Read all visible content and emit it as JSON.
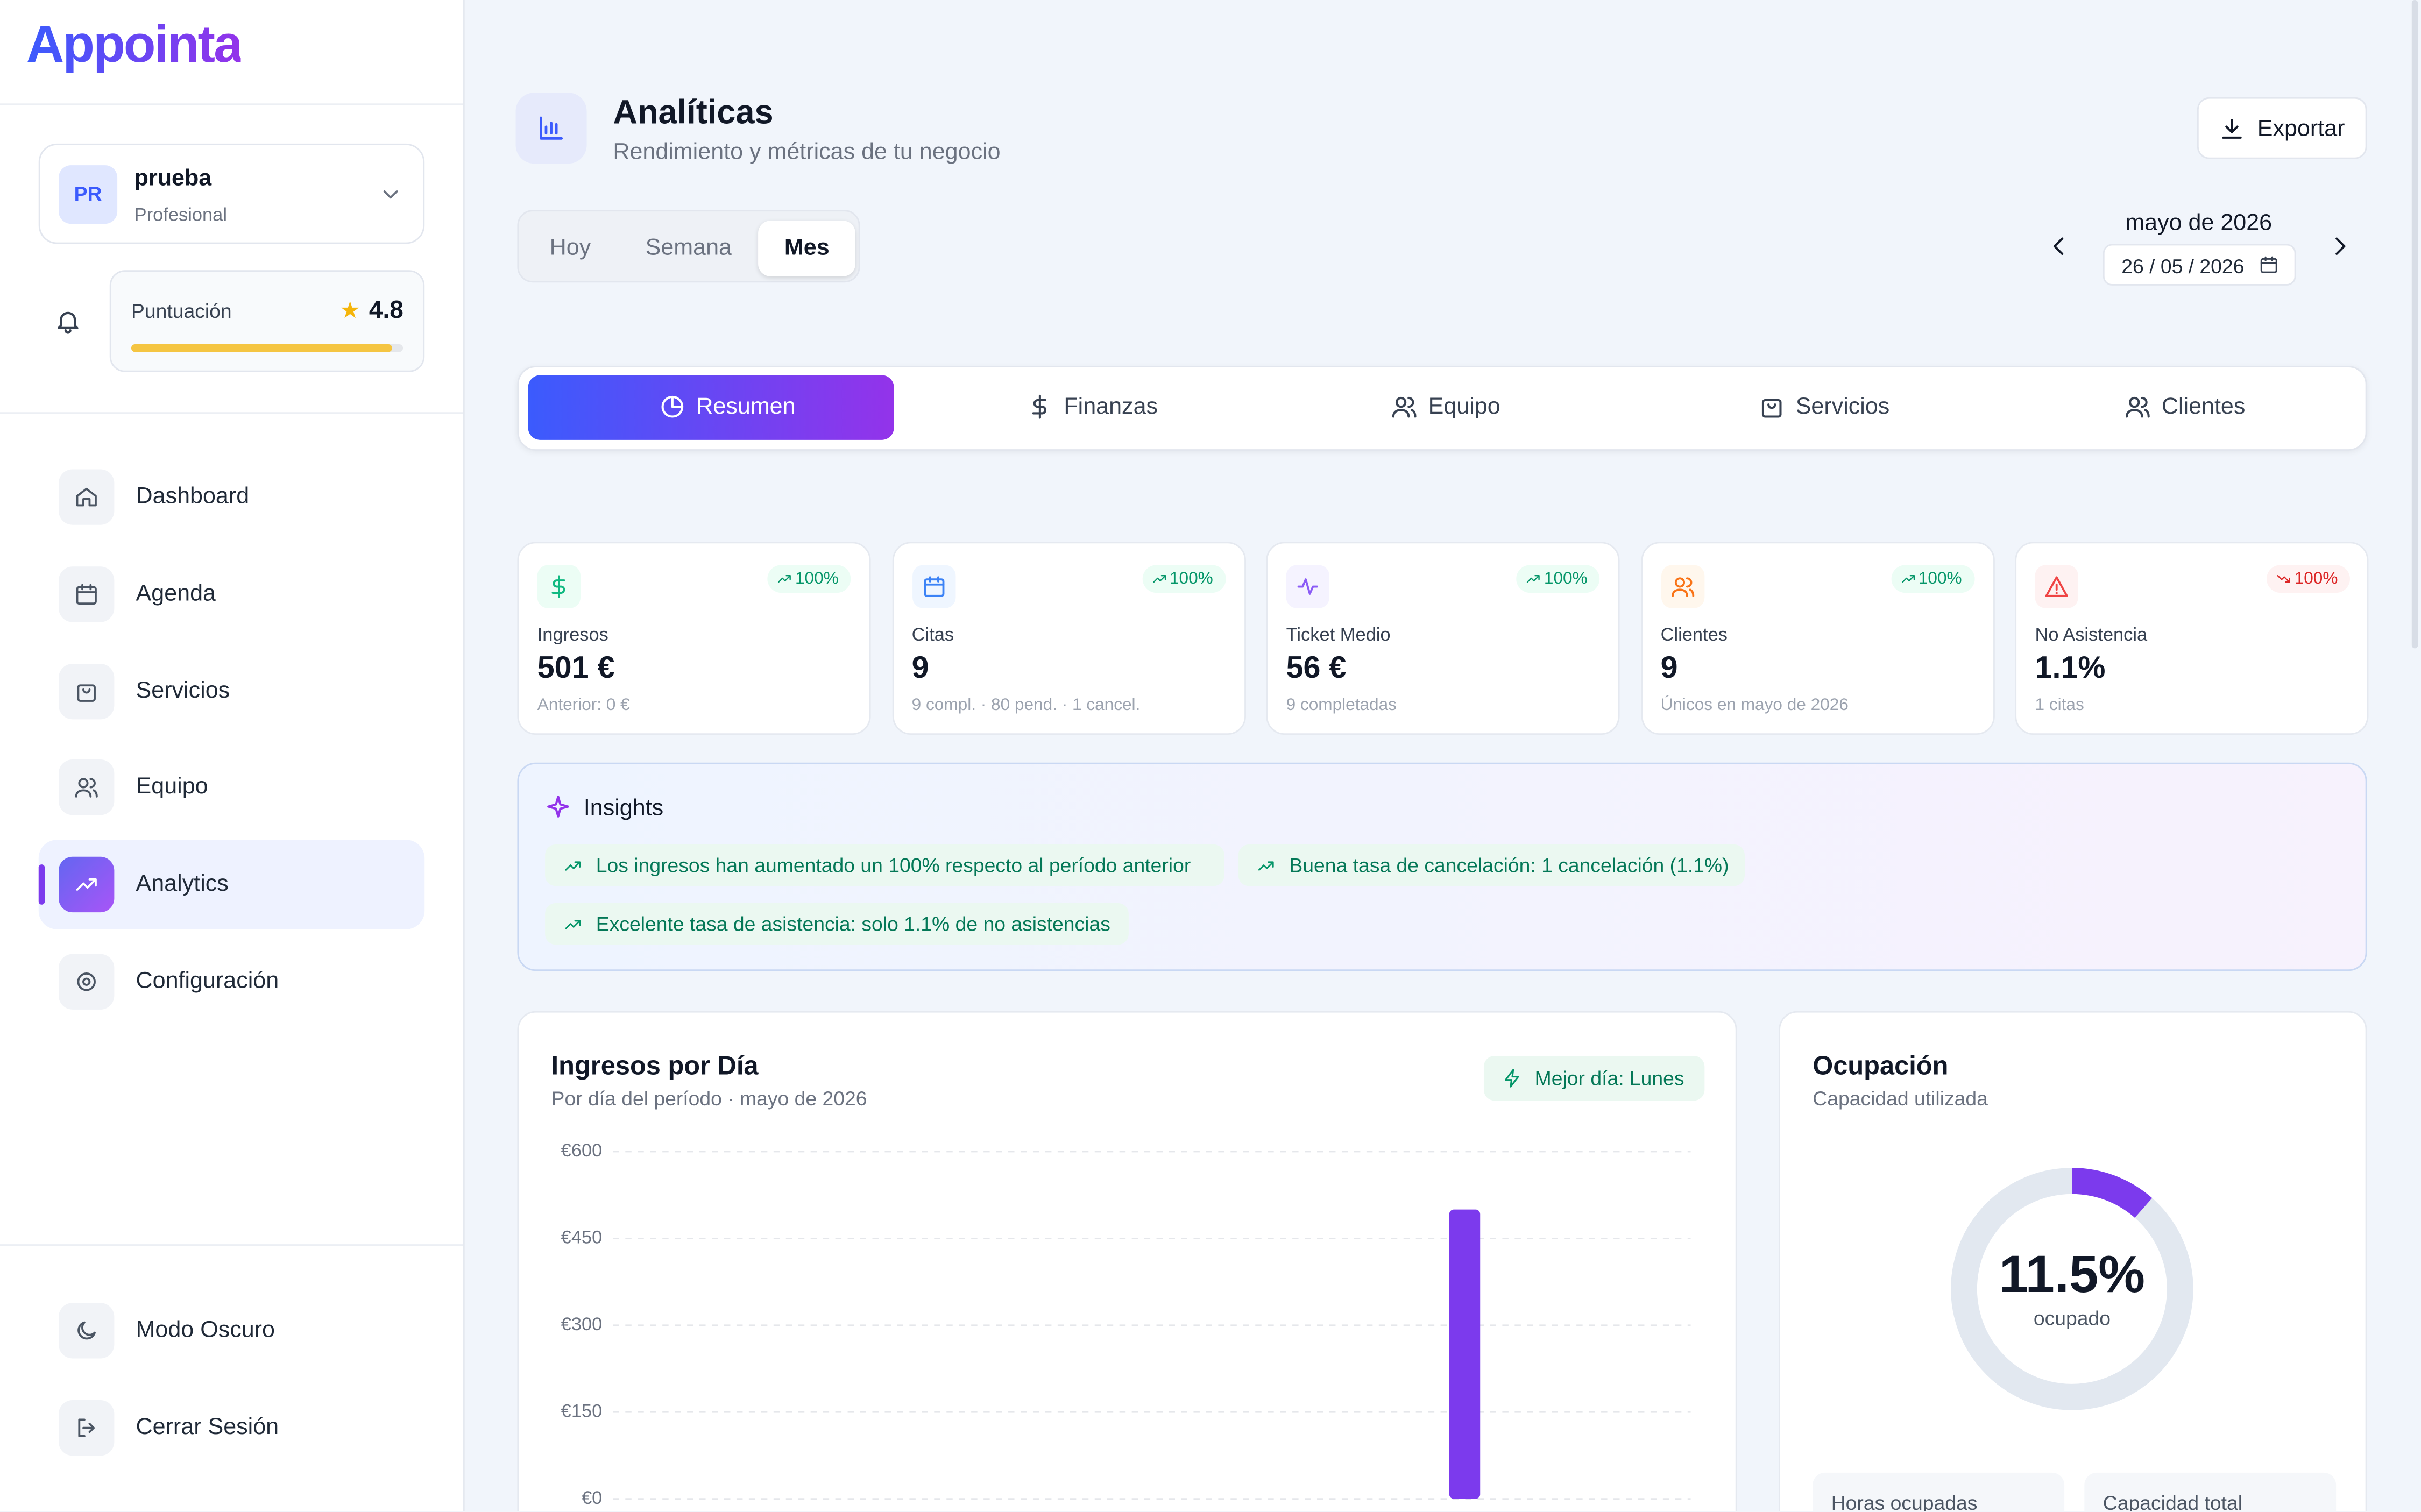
{
  "brand": "Appointa",
  "user": {
    "initials": "PR",
    "name": "prueba",
    "role": "Profesional"
  },
  "rating": {
    "label": "Puntuación",
    "value": 4.8
  },
  "nav": [
    "Dashboard",
    "Agenda",
    "Servicios",
    "Equipo",
    "Analytics",
    "Configuración"
  ],
  "footer_nav": [
    "Modo Oscuro",
    "Cerrar Sesión"
  ],
  "header": {
    "title": "Analíticas",
    "subtitle": "Rendimiento y métricas de tu negocio",
    "export": "Exportar"
  },
  "periods": [
    "Hoy",
    "Semana",
    "Mes"
  ],
  "date": {
    "month": "mayo de 2026",
    "value": "26 / 05 / 2026"
  },
  "tabs": [
    "Resumen",
    "Finanzas",
    "Equipo",
    "Servicios",
    "Clientes"
  ],
  "kpis": [
    {
      "label": "Ingresos",
      "value": "501 €",
      "change": "100%",
      "note": "Anterior: 0 €"
    },
    {
      "label": "Citas",
      "value": "9",
      "change": "100%",
      "note": "9 compl. · 80 pend. · 1 cancel."
    },
    {
      "label": "Ticket Medio",
      "value": "56 €",
      "change": "100%",
      "note": "9 completadas"
    },
    {
      "label": "Clientes",
      "value": "9",
      "change": "100%",
      "note": "Únicos en mayo de 2026"
    },
    {
      "label": "No Asistencia",
      "value": "1.1%",
      "change": "100%",
      "note": "1 citas"
    }
  ],
  "insights": {
    "title": "Insights",
    "items": [
      "Los ingresos han aumentado un 100% respecto al período anterior",
      "Buena tasa de cancelación: 1 cancelación (1.1%)",
      "Excelente tasa de asistencia: solo 1.1% de no asistencias"
    ]
  },
  "chart_data": [
    {
      "type": "bar",
      "title": "Ingresos por Día",
      "subtitle": "Por día del período · mayo de 2026",
      "badge": "Mejor día: Lunes",
      "categories": [
        null,
        null,
        null,
        null,
        null,
        null,
        null,
        null,
        null,
        null,
        null,
        null,
        null,
        null,
        null,
        null,
        null,
        null,
        null,
        null,
        null,
        null,
        null,
        null,
        null,
        null,
        null,
        null,
        null,
        null,
        null
      ],
      "values": [
        0,
        0,
        0,
        0,
        0,
        0,
        0,
        0,
        0,
        0,
        0,
        0,
        0,
        0,
        0,
        0,
        0,
        0,
        0,
        0,
        0,
        0,
        0,
        0,
        500,
        0,
        0,
        0,
        0,
        0,
        0
      ],
      "color": "#7c3aed",
      "ylim": [
        0,
        600
      ],
      "yticks": [
        {
          "value": 0,
          "label": "€0"
        },
        {
          "value": 150,
          "label": "€150"
        },
        {
          "value": 300,
          "label": "€300"
        },
        {
          "value": 450,
          "label": "€450"
        },
        {
          "value": 600,
          "label": "€600"
        }
      ],
      "grid": true
    },
    {
      "type": "pie",
      "title": "Ocupación",
      "subtitle": "Capacidad utilizada",
      "center_text": "ocupado",
      "values": [
        11.5,
        88.5
      ],
      "value_labels": [
        "11.5%",
        null
      ],
      "colors": [
        "#7c3aed",
        "#e2e8f0"
      ]
    }
  ],
  "stats": [
    "Horas ocupadas",
    "Capacidad total"
  ]
}
